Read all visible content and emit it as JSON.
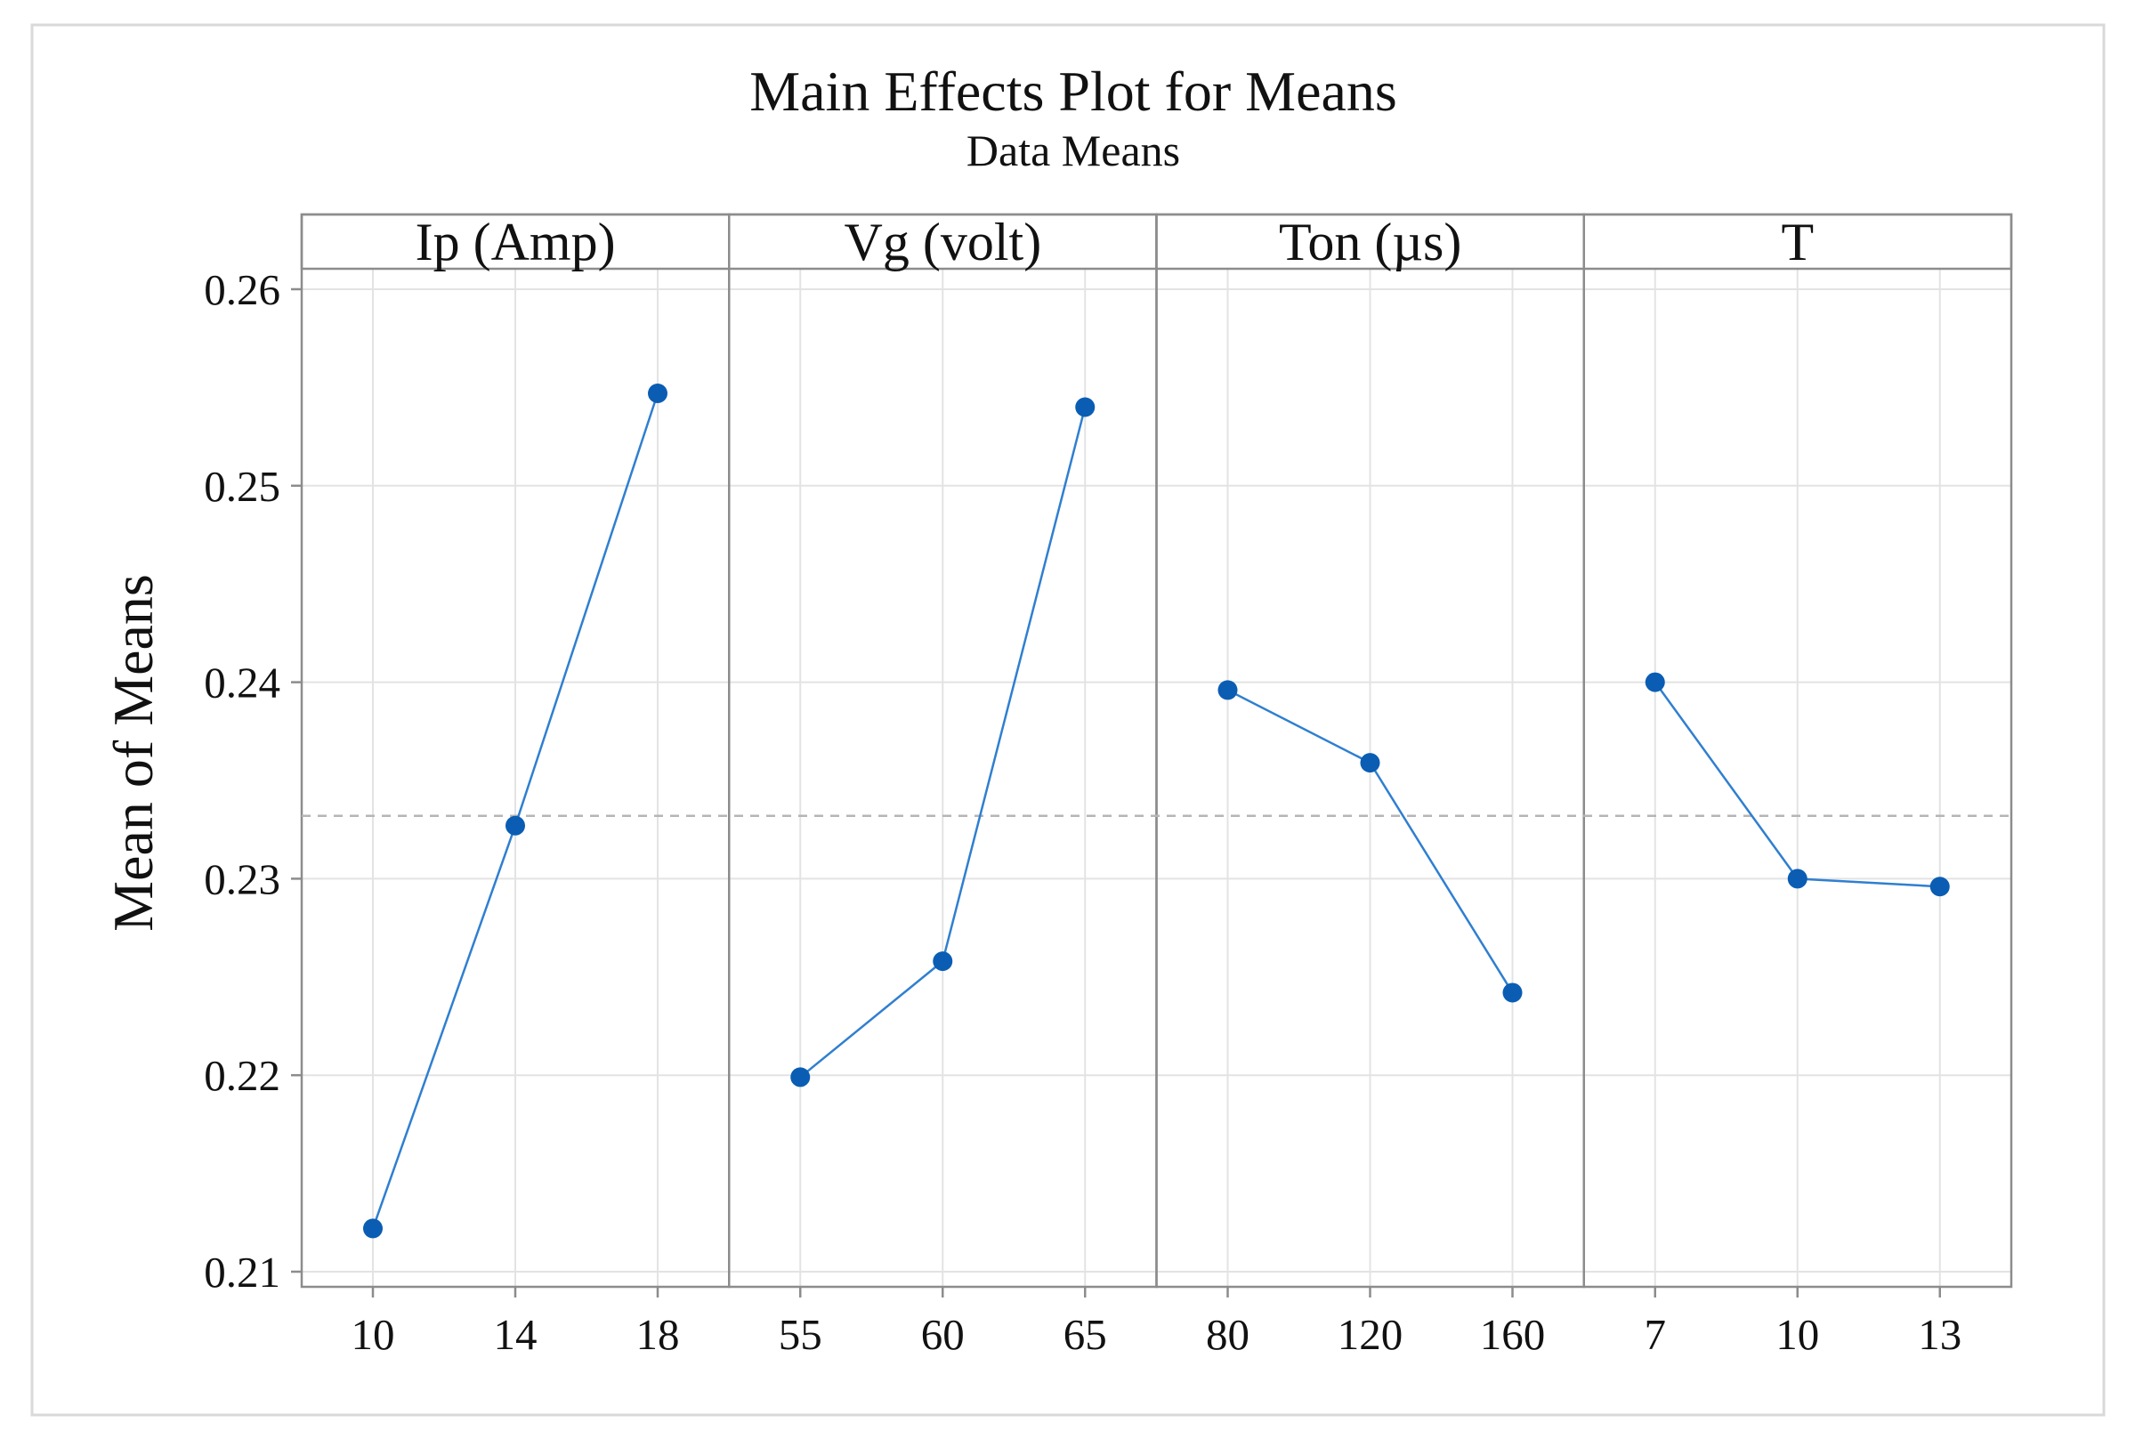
{
  "chart_data": {
    "type": "line",
    "title": "Main Effects Plot for Means",
    "subtitle": "Data Means",
    "ylabel": "Mean of Means",
    "ylim": [
      0.21,
      0.261
    ],
    "yticks": [
      "0.26",
      "0.25",
      "0.24",
      "0.23",
      "0.22",
      "0.21"
    ],
    "ytick_values": [
      0.26,
      0.25,
      0.24,
      0.23,
      0.22,
      0.21
    ],
    "reference_mean": 0.2332,
    "grid": true,
    "marker_color": "#0a5db3",
    "line_color": "#2f7fd0",
    "panels": [
      {
        "name": "Ip (Amp)",
        "levels": [
          "10",
          "14",
          "18"
        ],
        "values": [
          0.2122,
          0.2327,
          0.2547
        ]
      },
      {
        "name": "Vg (volt)",
        "levels": [
          "55",
          "60",
          "65"
        ],
        "values": [
          0.2199,
          0.2258,
          0.254
        ]
      },
      {
        "name": "Ton (µs)",
        "levels": [
          "80",
          "120",
          "160"
        ],
        "values": [
          0.2396,
          0.2359,
          0.2242
        ]
      },
      {
        "name": "T",
        "levels": [
          "7",
          "10",
          "13"
        ],
        "values": [
          0.24,
          0.23,
          0.2296
        ]
      }
    ]
  }
}
